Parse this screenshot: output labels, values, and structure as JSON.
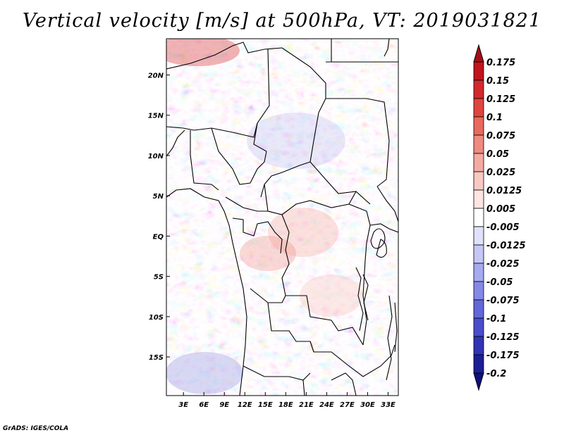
{
  "title": "Vertical velocity [m/s] at 500hPa, VT: 2019031821",
  "credit": "GrADS: IGES/COLA",
  "map": {
    "lat_labels": [
      "20N",
      "15N",
      "10N",
      "5N",
      "EQ",
      "5S",
      "10S",
      "15S"
    ],
    "lat_values": [
      20,
      15,
      10,
      5,
      0,
      -5,
      -10,
      -15
    ],
    "lon_labels": [
      "3E",
      "6E",
      "9E",
      "12E",
      "15E",
      "18E",
      "21E",
      "24E",
      "27E",
      "30E",
      "33E"
    ],
    "lon_values": [
      3,
      6,
      9,
      12,
      15,
      18,
      21,
      24,
      27,
      30,
      33
    ],
    "lon_range": [
      0.5,
      34.5
    ],
    "lat_range": [
      -19.8,
      24.5
    ]
  },
  "colorbar": {
    "labels": [
      "0.175",
      "0.15",
      "0.125",
      "0.1",
      "0.075",
      "0.05",
      "0.025",
      "0.0125",
      "0.005",
      "-0.005",
      "-0.0125",
      "-0.025",
      "-0.05",
      "-0.075",
      "-0.1",
      "-0.125",
      "-0.175",
      "-0.2"
    ],
    "colors": [
      "#a50f15",
      "#c0141f",
      "#d3282c",
      "#e0453f",
      "#e86a5e",
      "#ef8a80",
      "#f4aaa2",
      "#f8c9c3",
      "#fce5e2",
      "#ffffff",
      "#e0e2fb",
      "#c5c8f5",
      "#a6aaf0",
      "#8589e6",
      "#6467d9",
      "#4a4ccb",
      "#3133b4",
      "#1c1e96",
      "#10107a"
    ]
  }
}
